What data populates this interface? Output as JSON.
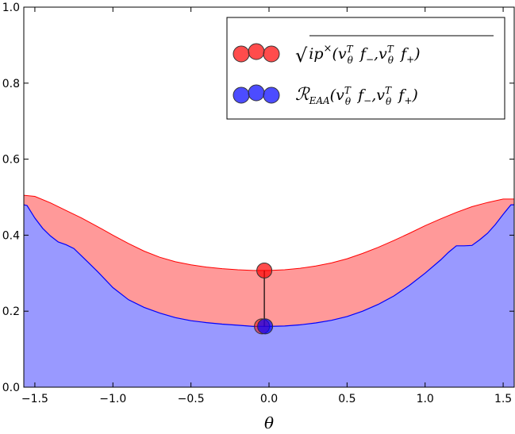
{
  "chart_data": {
    "type": "area",
    "xlabel": "θ",
    "ylabel": "",
    "title": "",
    "xlim": [
      -1.5708,
      1.5708
    ],
    "ylim": [
      0,
      1.0
    ],
    "xticks": [
      -1.5,
      -1.0,
      -0.5,
      0.0,
      0.5,
      1.0,
      1.5
    ],
    "xtick_labels": [
      "−1.5",
      "−1.0",
      "−0.5",
      "0.0",
      "0.5",
      "1.0",
      "1.5"
    ],
    "yticks": [
      0.0,
      0.2,
      0.4,
      0.6,
      0.8,
      1.0
    ],
    "ytick_labels": [
      "0.0",
      "0.2",
      "0.4",
      "0.6",
      "0.8",
      "1.0"
    ],
    "grid": false,
    "legend_position": "top-right",
    "series": [
      {
        "name": "sqrt(ip×(vθT f−, vθT f+))",
        "legend_label": "√ip×(vθT f−,vθT f+)",
        "color": "#ff0000",
        "fill": "#ff9999",
        "x": [
          -1.5708,
          -1.5,
          -1.4,
          -1.3,
          -1.2,
          -1.1,
          -1.0,
          -0.9,
          -0.8,
          -0.7,
          -0.6,
          -0.5,
          -0.4,
          -0.3,
          -0.2,
          -0.1,
          0.0,
          0.1,
          0.2,
          0.3,
          0.4,
          0.5,
          0.6,
          0.7,
          0.8,
          0.9,
          1.0,
          1.1,
          1.2,
          1.3,
          1.4,
          1.5,
          1.5708
        ],
        "y": [
          0.505,
          0.502,
          0.485,
          0.465,
          0.445,
          0.423,
          0.4,
          0.378,
          0.358,
          0.342,
          0.33,
          0.322,
          0.316,
          0.312,
          0.309,
          0.307,
          0.307,
          0.309,
          0.313,
          0.319,
          0.327,
          0.338,
          0.352,
          0.368,
          0.386,
          0.405,
          0.425,
          0.443,
          0.46,
          0.475,
          0.486,
          0.495,
          0.495
        ]
      },
      {
        "name": "R_EAA(vθT f−, vθT f+)",
        "legend_label": "R EAA(vθT f−,vθT f+)",
        "color": "#0000ff",
        "fill": "#9999ff",
        "x": [
          -1.5708,
          -1.55,
          -1.5,
          -1.45,
          -1.4,
          -1.35,
          -1.3,
          -1.25,
          -1.2,
          -1.15,
          -1.1,
          -1.0,
          -0.9,
          -0.8,
          -0.7,
          -0.6,
          -0.5,
          -0.4,
          -0.3,
          -0.2,
          -0.1,
          0.0,
          0.1,
          0.2,
          0.3,
          0.4,
          0.5,
          0.6,
          0.7,
          0.8,
          0.9,
          1.0,
          1.1,
          1.15,
          1.2,
          1.25,
          1.3,
          1.35,
          1.4,
          1.45,
          1.5,
          1.55,
          1.5708
        ],
        "y": [
          0.48,
          0.478,
          0.445,
          0.418,
          0.398,
          0.382,
          0.375,
          0.365,
          0.345,
          0.325,
          0.305,
          0.262,
          0.23,
          0.21,
          0.195,
          0.183,
          0.175,
          0.17,
          0.166,
          0.163,
          0.16,
          0.16,
          0.161,
          0.164,
          0.169,
          0.176,
          0.186,
          0.2,
          0.218,
          0.24,
          0.268,
          0.3,
          0.335,
          0.355,
          0.372,
          0.372,
          0.373,
          0.388,
          0.405,
          0.428,
          0.455,
          0.48,
          0.48
        ]
      }
    ],
    "annotation": {
      "x": -0.03,
      "y_top": 0.307,
      "y_bottom": 0.16,
      "top_marker_color": "#ff0000",
      "bottom_marker_color": "#0000ff"
    }
  }
}
